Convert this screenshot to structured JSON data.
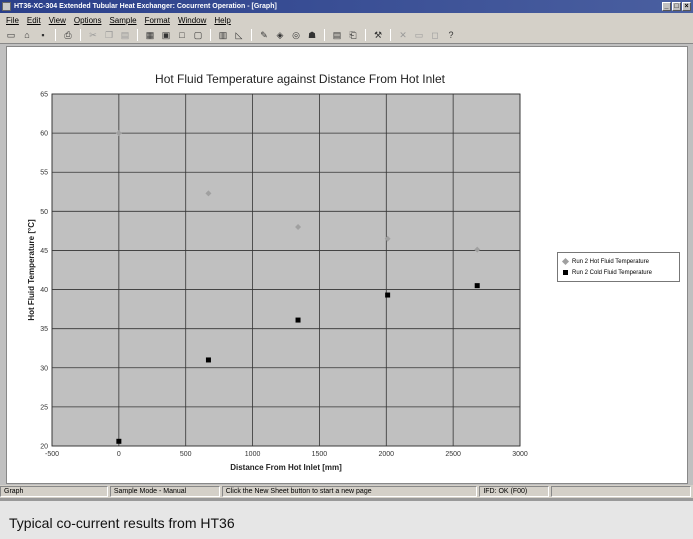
{
  "window": {
    "title": "HT36-XC-304 Extended Tubular Heat Exchanger: Cocurrent Operation - [Graph]",
    "buttons": [
      "_",
      "□",
      "×"
    ]
  },
  "menu": [
    "File",
    "Edit",
    "View",
    "Options",
    "Sample",
    "Format",
    "Window",
    "Help"
  ],
  "toolbar": {
    "icons": [
      "new-icon",
      "open-icon",
      "save-icon",
      "print-icon",
      "cut-icon",
      "copy-icon",
      "paste-icon",
      "view-icon",
      "view-icon",
      "view-icon",
      "view-icon",
      "chart-icon",
      "graph-icon",
      "settings-icon",
      "link-icon",
      "refresh-icon",
      "hat-icon",
      "table-icon",
      "export-icon",
      "tool-icon",
      "close-icon",
      "window-icon",
      "info-icon",
      "help-icon"
    ]
  },
  "chart_data": {
    "type": "scatter",
    "title": "Hot Fluid Temperature against Distance From Hot Inlet",
    "xlabel": "Distance From Hot Inlet [mm]",
    "ylabel": "Hot Fluid Temperature [°C]",
    "xlim": [
      -500,
      3000
    ],
    "ylim": [
      20,
      65
    ],
    "xticks": [
      -500,
      0,
      500,
      1000,
      1500,
      2000,
      2500,
      3000
    ],
    "yticks": [
      20,
      25,
      30,
      35,
      40,
      45,
      50,
      55,
      60,
      65
    ],
    "grid": true,
    "legend_position": "right",
    "series": [
      {
        "name": "Run 2 Hot Fluid Temperature",
        "marker": "diamond",
        "color": "#a0a0a0",
        "x": [
          0,
          670,
          1340,
          2010,
          2680
        ],
        "y": [
          60.0,
          52.3,
          48.0,
          46.5,
          45.1
        ]
      },
      {
        "name": "Run 2 Cold Fluid Temperature",
        "marker": "square",
        "color": "#000000",
        "x": [
          0,
          670,
          1340,
          2010,
          2680
        ],
        "y": [
          20.6,
          31.0,
          36.1,
          39.3,
          40.5
        ]
      }
    ],
    "plot_bg": "#c0c0c0"
  },
  "status": {
    "panels": [
      "Graph",
      "Sample Mode - Manual",
      "Click the New Sheet button to start a new page",
      "IFD: OK (F00)",
      ""
    ]
  },
  "caption": "Typical co-current results from HT36"
}
